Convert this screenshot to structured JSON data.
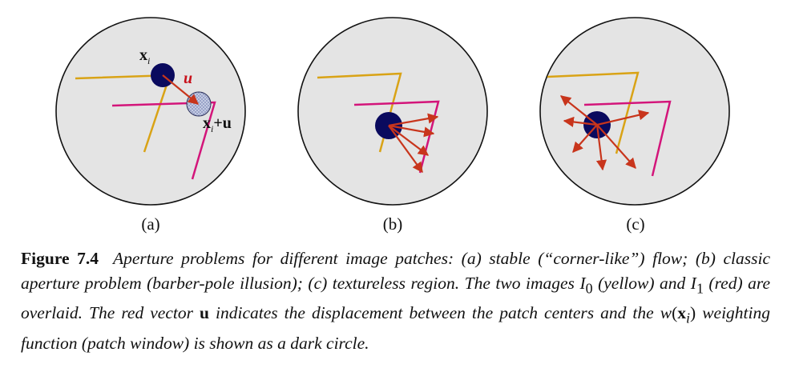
{
  "panels": [
    {
      "label": "(a)"
    },
    {
      "label": "(b)"
    },
    {
      "label": "(c)"
    }
  ],
  "annotations": {
    "xi": "x",
    "xi_sub": "i",
    "u": "u",
    "xi_plus_u_x": "x",
    "xi_plus_u_sub": "i",
    "xi_plus_u_rest": "+u"
  },
  "colors": {
    "disc_fill": "#e4e4e4",
    "yellow": "#d9a316",
    "red": "#d3157a",
    "vector": "#c8351c",
    "patch": "#0a0a5e"
  },
  "caption": {
    "figure_number": "Figure 7.4",
    "text_1": "Aperture problems for different image patches: (a) stable (“corner-like”) flow; (b) classic aperture problem (barber-pole illusion); (c) textureless region. The two images ",
    "I0": "I",
    "I0_sub": "0",
    "text_2": " (yellow) and ",
    "I1": "I",
    "I1_sub": "1",
    "text_3": " (red) are overlaid. The red vector ",
    "u": "u",
    "text_4": " indicates the displacement between the patch centers and the ",
    "w": "w",
    "w_open": "(",
    "w_x": "x",
    "w_sub": "i",
    "w_close": ")",
    "text_5": " weighting function (patch window) is shown as a dark circle."
  }
}
